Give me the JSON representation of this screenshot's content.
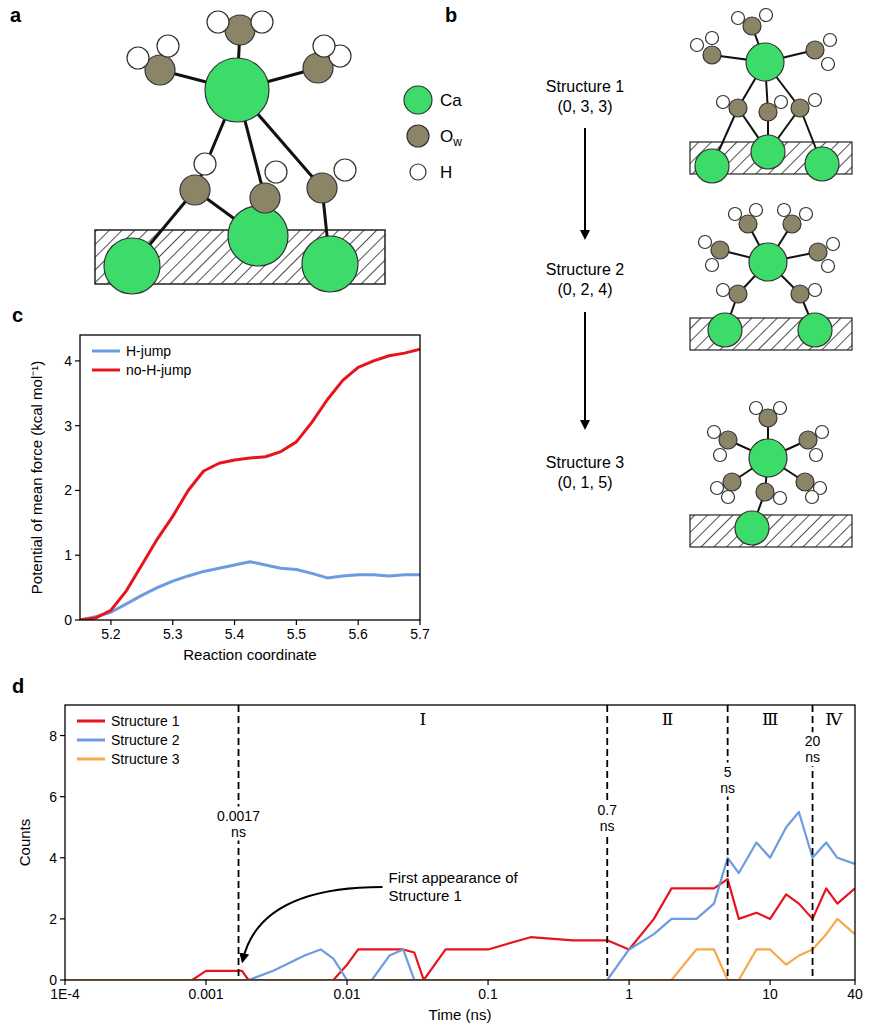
{
  "diagram_a": {
    "letter": "a",
    "legend": [
      {
        "label": "Ca",
        "color": "#3ddc6a"
      },
      {
        "label": "O",
        "subscript": "w",
        "color": "#8b8466"
      },
      {
        "label": "H",
        "color": "#ffffff"
      }
    ]
  },
  "diagram_b": {
    "letter": "b",
    "structures": [
      {
        "name": "Structure 1",
        "counts": "(0, 3, 3)"
      },
      {
        "name": "Structure 2",
        "counts": "(0, 2, 4)"
      },
      {
        "name": "Structure 3",
        "counts": "(0, 1, 5)"
      }
    ]
  },
  "chart_data": [
    {
      "letter": "c",
      "type": "line",
      "xlabel": "Reaction coordinate",
      "ylabel": "Potential of mean force (kcal mol⁻¹)",
      "x": [
        5.15,
        5.175,
        5.2,
        5.225,
        5.25,
        5.275,
        5.3,
        5.325,
        5.35,
        5.375,
        5.4,
        5.425,
        5.45,
        5.475,
        5.5,
        5.525,
        5.55,
        5.575,
        5.6,
        5.625,
        5.65,
        5.675,
        5.7
      ],
      "xlim": [
        5.15,
        5.7
      ],
      "xticks": [
        5.2,
        5.3,
        5.4,
        5.5,
        5.6,
        5.7
      ],
      "ylim": [
        0,
        4.4
      ],
      "yticks": [
        0,
        1,
        2,
        3,
        4
      ],
      "grid": false,
      "legend": "upper left",
      "series": [
        {
          "name": "H-jump",
          "color": "#6c9be0",
          "values": [
            0,
            0.05,
            0.12,
            0.25,
            0.38,
            0.5,
            0.6,
            0.68,
            0.75,
            0.8,
            0.85,
            0.9,
            0.85,
            0.8,
            0.78,
            0.72,
            0.65,
            0.68,
            0.7,
            0.7,
            0.68,
            0.7,
            0.7
          ]
        },
        {
          "name": "no-H-jump",
          "color": "#e8141c",
          "values": [
            0,
            0.03,
            0.15,
            0.45,
            0.85,
            1.25,
            1.6,
            2.0,
            2.3,
            2.42,
            2.47,
            2.5,
            2.52,
            2.6,
            2.75,
            3.05,
            3.4,
            3.7,
            3.9,
            4.0,
            4.08,
            4.12,
            4.18
          ]
        }
      ]
    },
    {
      "letter": "d",
      "type": "line",
      "log": "x",
      "xlabel": "Time (ns)",
      "ylabel": "Counts",
      "x": [
        0.0001,
        0.0008,
        0.001,
        0.0015,
        0.0018,
        0.002,
        0.003,
        0.005,
        0.0065,
        0.008,
        0.01,
        0.012,
        0.015,
        0.02,
        0.025,
        0.03,
        0.035,
        0.05,
        0.1,
        0.2,
        0.4,
        0.7,
        1,
        1.5,
        2,
        3,
        4,
        5,
        6,
        8,
        10,
        13,
        16,
        20,
        25,
        30,
        40
      ],
      "xlim": [
        0.0001,
        40
      ],
      "xticks": [
        {
          "value": 0.0001,
          "label": "1E-4"
        },
        0.001,
        0.01,
        0.1,
        1,
        10,
        40
      ],
      "ylim": [
        0,
        9
      ],
      "yticks": [
        0,
        2,
        4,
        6,
        8
      ],
      "grid": false,
      "legend": "upper left",
      "series": [
        {
          "name": "Structure 1",
          "color": "#e8141c",
          "values": [
            0,
            0,
            0.3,
            0.3,
            0.3,
            0,
            0,
            0,
            0,
            0,
            0.5,
            1,
            1,
            1,
            1,
            0.9,
            0,
            1,
            1,
            1.4,
            1.3,
            1.3,
            1,
            2,
            3,
            3,
            3,
            3.3,
            2,
            2.2,
            2,
            2.8,
            2.5,
            2,
            3,
            2.5,
            3
          ]
        },
        {
          "name": "Structure 2",
          "color": "#6c9be0",
          "values": [
            0,
            0,
            0,
            0,
            0,
            0,
            0.3,
            0.8,
            1,
            0.7,
            0,
            0,
            0,
            0.8,
            1,
            0,
            0,
            0,
            0,
            0,
            0,
            0,
            1,
            1.5,
            2,
            2,
            2.5,
            4,
            3.5,
            4.5,
            4,
            5,
            5.5,
            4,
            4.5,
            4,
            3.8
          ]
        },
        {
          "name": "Structure 3",
          "color": "#f5a94a",
          "values": [
            0,
            0,
            0,
            0,
            0,
            0,
            0,
            0,
            0,
            0,
            0,
            0,
            0,
            0,
            0,
            0,
            0,
            0,
            0,
            0,
            0,
            0,
            0,
            0,
            0,
            1,
            1,
            0,
            0,
            1,
            1,
            0.5,
            0.8,
            1,
            1.5,
            2,
            1.5
          ]
        }
      ],
      "vlines": [
        {
          "x": 0.0017,
          "label_lines": [
            "0.0017",
            "ns"
          ]
        },
        {
          "x": 0.7,
          "label_lines": [
            "0.7",
            "ns"
          ]
        },
        {
          "x": 5,
          "label_lines": [
            "5",
            "ns"
          ]
        },
        {
          "x": 20,
          "label_lines": [
            "20",
            "ns"
          ]
        }
      ],
      "regions": [
        {
          "label": "Ⅰ",
          "from": 0.0017,
          "to": 0.7
        },
        {
          "label": "Ⅱ",
          "from": 0.7,
          "to": 5
        },
        {
          "label": "Ⅲ",
          "from": 5,
          "to": 20
        },
        {
          "label": "Ⅳ",
          "from": 20,
          "to": 40
        }
      ],
      "annotation": {
        "text": "First appearance of Structure 1",
        "x": 0.0017,
        "y": 0.35
      }
    }
  ]
}
